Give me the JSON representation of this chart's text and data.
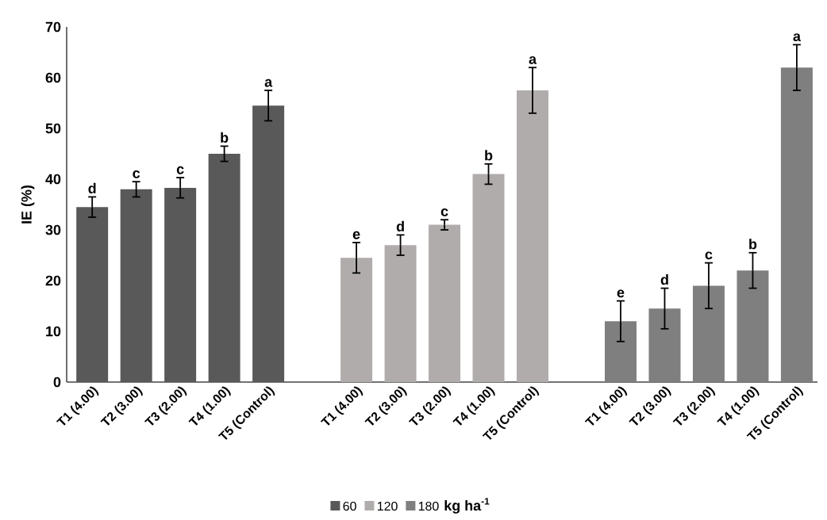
{
  "chart_data": {
    "type": "bar",
    "ylabel": "IE (%)",
    "legend_title": "**kg ha$^{-1}$**",
    "legend": "bottom",
    "categories": [
      "T1 (4.00)",
      "T2 (3.00)",
      "T3 (2.00)",
      "T4 (1.00)",
      "T5 (Control)",
      null,
      "T1 (4.00)",
      "T2 (3.00)",
      "T3 (2.00)",
      "T4 (1.00)",
      "T5 (Control)",
      null,
      "T1 (4.00)",
      "T2 (3.00)",
      "T3 (2.00)",
      "T4 (1.00)",
      "T5 (Control)"
    ],
    "ylim": [
      0,
      70
    ],
    "yticks": [
      0,
      10,
      20,
      30,
      40,
      50,
      60,
      70
    ],
    "series": [
      {
        "name": "60",
        "color": "#595959",
        "values": [
          34.5,
          38,
          38.3,
          45,
          54.5,
          null,
          null,
          null,
          null,
          null,
          null,
          null,
          null,
          null,
          null,
          null,
          null
        ],
        "errors": [
          2,
          1.5,
          2,
          1.5,
          3,
          null,
          null,
          null,
          null,
          null,
          null,
          null,
          null,
          null,
          null,
          null,
          null
        ],
        "value_labels": [
          "d",
          "c",
          "c",
          "b",
          "a",
          null,
          null,
          null,
          null,
          null,
          null,
          null,
          null,
          null,
          null,
          null,
          null
        ]
      },
      {
        "name": "120",
        "color": "#b0acab",
        "values": [
          null,
          null,
          null,
          null,
          null,
          null,
          24.5,
          27,
          31,
          41,
          57.5,
          null,
          null,
          null,
          null,
          null,
          null
        ],
        "errors": [
          null,
          null,
          null,
          null,
          null,
          null,
          3,
          2,
          1,
          2,
          4.5,
          null,
          null,
          null,
          null,
          null,
          null
        ],
        "value_labels": [
          null,
          null,
          null,
          null,
          null,
          null,
          "e",
          "d",
          "c",
          "b",
          "a",
          null,
          null,
          null,
          null,
          null,
          null
        ]
      },
      {
        "name": "180",
        "color": "#7f7f7f",
        "values": [
          null,
          null,
          null,
          null,
          null,
          null,
          null,
          null,
          null,
          null,
          null,
          null,
          12,
          14.5,
          19,
          22,
          62
        ],
        "errors": [
          null,
          null,
          null,
          null,
          null,
          null,
          null,
          null,
          null,
          null,
          null,
          null,
          4,
          4,
          4.5,
          3.5,
          4.5
        ],
        "value_labels": [
          null,
          null,
          null,
          null,
          null,
          null,
          null,
          null,
          null,
          null,
          null,
          null,
          "e",
          "d",
          "c",
          "b",
          "a"
        ]
      }
    ]
  }
}
